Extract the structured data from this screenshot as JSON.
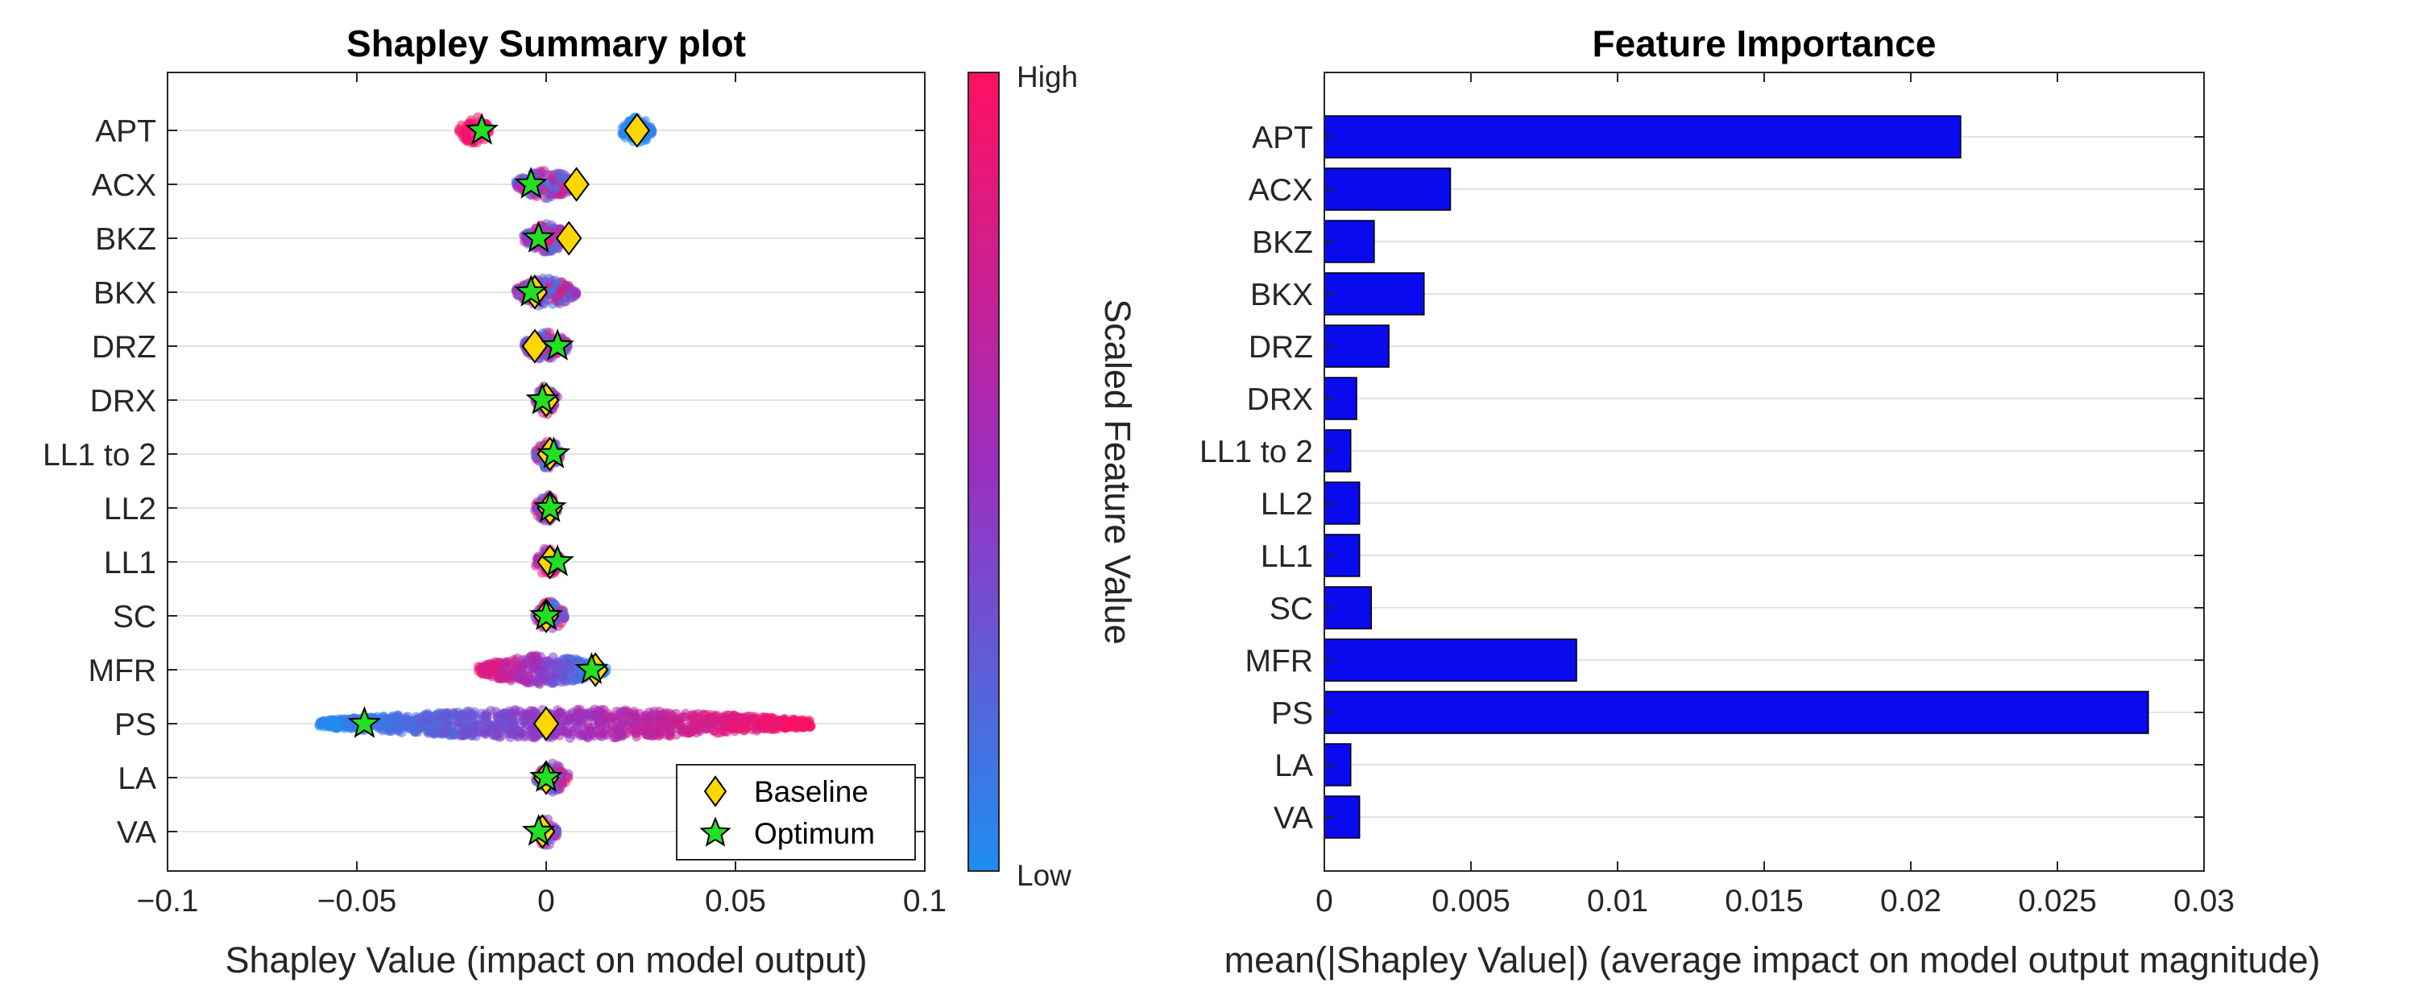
{
  "chart_data": [
    {
      "type": "scatter",
      "title": "Shapley Summary plot",
      "xlabel": "Shapley Value (impact on model output)",
      "xlim": [
        -0.1,
        0.1
      ],
      "xticks": [
        -0.1,
        -0.05,
        0,
        0.05,
        0.1
      ],
      "xtick_labels": [
        "−0.1",
        "−0.05",
        "0",
        "0.05",
        "0.1"
      ],
      "features": [
        "APT",
        "ACX",
        "BKZ",
        "BKX",
        "DRZ",
        "DRX",
        "LL1 to 2",
        "LL2",
        "LL1",
        "SC",
        "MFR",
        "PS",
        "LA",
        "VA"
      ],
      "grid": "horizontal",
      "colorbar": {
        "label": "Scaled Feature Value",
        "high_label": "High",
        "low_label": "Low",
        "high_color": "#ff1060",
        "mid_color": "#9b2fc0",
        "low_color": "#1e8ef0"
      },
      "distributions": [
        {
          "feature": "APT",
          "groups": [
            {
              "min": -0.023,
              "max": -0.015,
              "color": "high"
            },
            {
              "min": 0.02,
              "max": 0.028,
              "color": "low"
            }
          ]
        },
        {
          "feature": "ACX",
          "groups": [
            {
              "min": -0.008,
              "max": 0.008,
              "color": "mixed"
            }
          ]
        },
        {
          "feature": "BKZ",
          "groups": [
            {
              "min": -0.006,
              "max": 0.006,
              "color": "mixed"
            }
          ]
        },
        {
          "feature": "BKX",
          "groups": [
            {
              "min": -0.008,
              "max": 0.008,
              "color": "mixed"
            }
          ]
        },
        {
          "feature": "DRZ",
          "groups": [
            {
              "min": -0.006,
              "max": 0.006,
              "color": "mixed"
            }
          ]
        },
        {
          "feature": "DRX",
          "groups": [
            {
              "min": -0.003,
              "max": 0.003,
              "color": "mixed"
            }
          ]
        },
        {
          "feature": "LL1 to 2",
          "groups": [
            {
              "min": -0.003,
              "max": 0.004,
              "color": "mixed"
            }
          ]
        },
        {
          "feature": "LL2",
          "groups": [
            {
              "min": -0.003,
              "max": 0.003,
              "color": "mixed"
            }
          ]
        },
        {
          "feature": "LL1",
          "groups": [
            {
              "min": -0.003,
              "max": 0.004,
              "color": "mixed"
            }
          ]
        },
        {
          "feature": "SC",
          "groups": [
            {
              "min": -0.003,
              "max": 0.005,
              "color": "mixed"
            }
          ]
        },
        {
          "feature": "MFR",
          "groups": [
            {
              "min": -0.018,
              "max": 0.016,
              "color": "mfr"
            }
          ]
        },
        {
          "feature": "PS",
          "groups": [
            {
              "min": -0.06,
              "max": 0.07,
              "color": "gradient"
            }
          ]
        },
        {
          "feature": "LA",
          "groups": [
            {
              "min": -0.003,
              "max": 0.006,
              "color": "mixed"
            }
          ]
        },
        {
          "feature": "VA",
          "groups": [
            {
              "min": -0.003,
              "max": 0.003,
              "color": "mixed"
            }
          ]
        }
      ],
      "series": [
        {
          "name": "Baseline",
          "marker": "diamond",
          "color": "#ffd700",
          "x": [
            0.024,
            0.008,
            0.006,
            -0.003,
            -0.003,
            0.0,
            0.001,
            0.001,
            0.001,
            0.0,
            0.013,
            0.0,
            0.0,
            -0.001
          ]
        },
        {
          "name": "Optimum",
          "marker": "star",
          "color": "#22e022",
          "x": [
            -0.017,
            -0.004,
            -0.002,
            -0.004,
            0.003,
            -0.001,
            0.002,
            0.001,
            0.003,
            0.0,
            0.012,
            -0.048,
            0.0,
            -0.002
          ]
        }
      ],
      "legend": "bottom-right"
    },
    {
      "type": "bar",
      "orientation": "horizontal",
      "title": "Feature Importance",
      "xlabel": "mean(|Shapley Value|) (average impact on model output magnitude)",
      "xlim": [
        0,
        0.03
      ],
      "xticks": [
        0,
        0.005,
        0.01,
        0.015,
        0.02,
        0.025,
        0.03
      ],
      "xtick_labels": [
        "0",
        "0.005",
        "0.01",
        "0.015",
        "0.02",
        "0.025",
        "0.03"
      ],
      "categories": [
        "APT",
        "ACX",
        "BKZ",
        "BKX",
        "DRZ",
        "DRX",
        "LL1 to 2",
        "LL2",
        "LL1",
        "SC",
        "MFR",
        "PS",
        "LA",
        "VA"
      ],
      "values": [
        0.0217,
        0.0043,
        0.0017,
        0.0034,
        0.0022,
        0.0011,
        0.0009,
        0.0012,
        0.0012,
        0.0016,
        0.0086,
        0.0281,
        0.0009,
        0.0012
      ],
      "bar_color": "#0a0aee",
      "grid": "horizontal"
    }
  ]
}
